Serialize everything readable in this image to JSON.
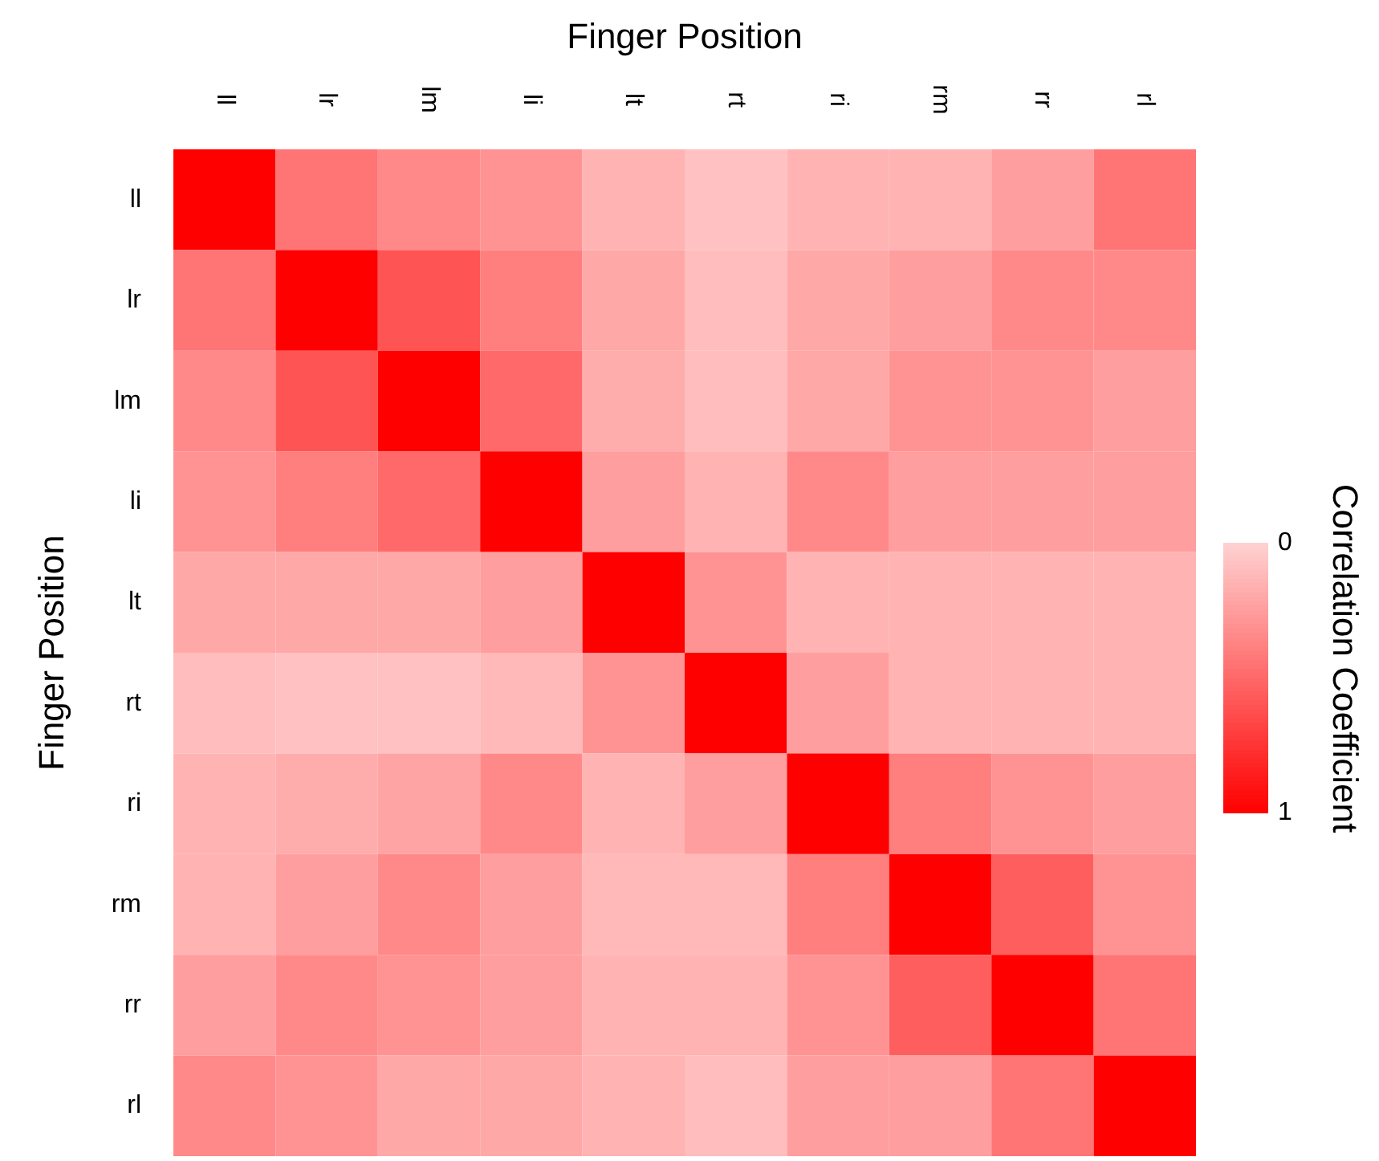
{
  "chart_data": {
    "type": "heatmap",
    "title": "Finger Position",
    "ylabel": "Finger Position",
    "clabel": "Correlation Coefficient",
    "categories": [
      "ll",
      "lr",
      "lm",
      "li",
      "lt",
      "rt",
      "ri",
      "rm",
      "rr",
      "rl"
    ],
    "y_categories": [
      "ll",
      "lr",
      "lm",
      "li",
      "lt",
      "rt",
      "ri",
      "rm",
      "rr",
      "rl"
    ],
    "cells": [
      [
        1,
        0.45,
        0.35,
        0.3,
        0.15,
        0.08,
        0.15,
        0.15,
        0.25,
        0.45
      ],
      [
        0.45,
        1,
        0.6,
        0.4,
        0.2,
        0.1,
        0.2,
        0.25,
        0.35,
        0.35
      ],
      [
        0.35,
        0.6,
        1,
        0.5,
        0.18,
        0.1,
        0.2,
        0.3,
        0.3,
        0.25
      ],
      [
        0.3,
        0.4,
        0.5,
        1,
        0.25,
        0.15,
        0.35,
        0.25,
        0.25,
        0.25
      ],
      [
        0.2,
        0.2,
        0.2,
        0.25,
        1,
        0.3,
        0.15,
        0.15,
        0.15,
        0.15
      ],
      [
        0.1,
        0.08,
        0.08,
        0.12,
        0.3,
        1,
        0.25,
        0.15,
        0.15,
        0.15
      ],
      [
        0.15,
        0.18,
        0.22,
        0.35,
        0.15,
        0.25,
        1,
        0.4,
        0.3,
        0.25
      ],
      [
        0.15,
        0.25,
        0.35,
        0.25,
        0.12,
        0.12,
        0.4,
        1,
        0.55,
        0.3
      ],
      [
        0.25,
        0.35,
        0.3,
        0.25,
        0.15,
        0.15,
        0.3,
        0.55,
        1,
        0.45
      ],
      [
        0.35,
        0.3,
        0.2,
        0.2,
        0.15,
        0.1,
        0.25,
        0.25,
        0.45,
        1
      ]
    ],
    "clim": [
      0,
      1
    ],
    "cticks": [
      0,
      1
    ]
  }
}
